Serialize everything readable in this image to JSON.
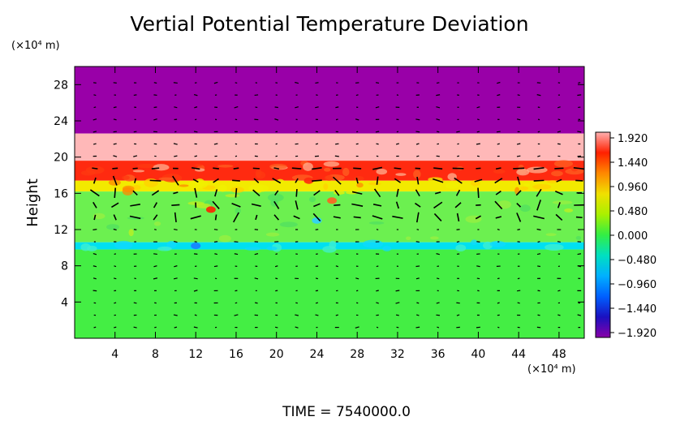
{
  "chart_data": {
    "type": "heatmap",
    "title": "Vertial Potential Temperature Deviation",
    "ylabel": "Height",
    "y_unit": "(×10⁴ m)",
    "x_unit": "(×10⁴ m)",
    "xlim": [
      0,
      50.5
    ],
    "ylim": [
      0,
      30
    ],
    "x_ticks": [
      4,
      8,
      12,
      16,
      20,
      24,
      28,
      32,
      36,
      40,
      44,
      48
    ],
    "y_ticks": [
      4,
      8,
      12,
      16,
      20,
      24,
      28
    ],
    "colorbar": {
      "ticks": [
        "1.920",
        "1.440",
        "0.960",
        "0.480",
        "0.000",
        "−0.480",
        "−0.960",
        "−1.440",
        "−1.920"
      ],
      "range": [
        -1.92,
        1.92
      ],
      "colors": [
        "#8800a8",
        "#1a10c0",
        "#0060ff",
        "#00b0ff",
        "#00e0c0",
        "#33ee44",
        "#aaf000",
        "#f0e000",
        "#ff8800",
        "#ff2000",
        "#ffb0b0"
      ]
    },
    "layers": [
      {
        "from": 22.6,
        "to": 30,
        "value": -1.92,
        "color": "#9900a8"
      },
      {
        "from": 19.6,
        "to": 22.6,
        "value": 1.92,
        "color": "#ffb8b8"
      },
      {
        "from": 17.4,
        "to": 19.6,
        "value": 1.5,
        "color": "#ff2a10"
      },
      {
        "from": 16.2,
        "to": 17.4,
        "value": 0.9,
        "color": "#f2ea00"
      },
      {
        "from": 10.6,
        "to": 16.2,
        "value": 0.2,
        "color": "#6cf050"
      },
      {
        "from": 9.8,
        "to": 10.6,
        "value": -0.7,
        "color": "#00e0f0"
      },
      {
        "from": 0,
        "to": 9.8,
        "value": 0.1,
        "color": "#44ee44"
      }
    ],
    "grid": false,
    "vector_overlay": true,
    "time_label": "TIME  =  7540000.0"
  }
}
